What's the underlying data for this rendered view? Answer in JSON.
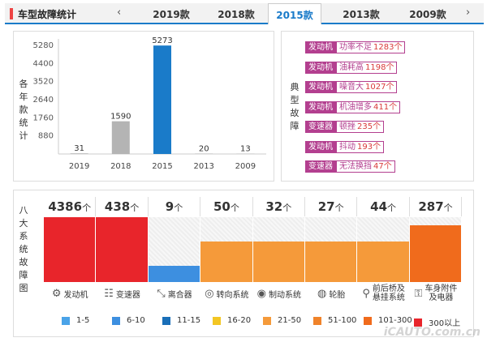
{
  "header": {
    "title": "车型故障统计",
    "prev_arrow": "‹",
    "next_arrow": "›",
    "tabs": [
      {
        "label": "2019款",
        "active": false
      },
      {
        "label": "2018款",
        "active": false
      },
      {
        "label": "2015款",
        "active": true
      },
      {
        "label": "2013款",
        "active": false
      },
      {
        "label": "2009款",
        "active": false
      }
    ]
  },
  "chart": {
    "ylabel": "各年款统计",
    "chart_data": {
      "type": "bar",
      "categories": [
        "2019",
        "2018",
        "2015",
        "2013",
        "2009"
      ],
      "values": [
        31,
        1590,
        5273,
        20,
        13
      ],
      "yticks": [
        880,
        1760,
        2640,
        3520,
        4400,
        5280
      ],
      "ylim": [
        0,
        5280
      ],
      "highlight": "2015",
      "colors": {
        "normal": "#b4b4b4",
        "highlight": "#1a7bc9"
      }
    }
  },
  "typical_faults": {
    "title": "典型故障",
    "items": [
      {
        "category": "发动机",
        "desc": "功率不足",
        "count": "1283个"
      },
      {
        "category": "发动机",
        "desc": "油耗高",
        "count": "1198个"
      },
      {
        "category": "发动机",
        "desc": "噪音大",
        "count": "1027个"
      },
      {
        "category": "发动机",
        "desc": "机油增多",
        "count": "411个"
      },
      {
        "category": "变速器",
        "desc": "顿挫",
        "count": "235个"
      },
      {
        "category": "发动机",
        "desc": "抖动",
        "count": "193个"
      },
      {
        "category": "变速器",
        "desc": "无法换挡",
        "count": "47个"
      }
    ]
  },
  "systems": {
    "title": "八大系统故障图",
    "unit": "个",
    "items": [
      {
        "count": "4386",
        "label": "发动机",
        "icon": "engine-icon",
        "glyph": "⚙",
        "level": 1.0,
        "color": "#e8252b"
      },
      {
        "count": "438",
        "label": "变速器",
        "icon": "gearbox-icon",
        "glyph": "☷",
        "level": 1.0,
        "color": "#e8252b"
      },
      {
        "count": "9",
        "label": "离合器",
        "icon": "clutch-icon",
        "glyph": "⤡",
        "level": 0.25,
        "color": "#3d8fe0"
      },
      {
        "count": "50",
        "label": "转向系统",
        "icon": "steering-icon",
        "glyph": "◎",
        "level": 0.62,
        "color": "#f59a3a"
      },
      {
        "count": "32",
        "label": "制动系统",
        "icon": "brake-icon",
        "glyph": "◉",
        "level": 0.62,
        "color": "#f59a3a"
      },
      {
        "count": "27",
        "label": "轮胎",
        "icon": "tire-icon",
        "glyph": "◍",
        "level": 0.62,
        "color": "#f59a3a"
      },
      {
        "count": "44",
        "label": "前后桥及悬挂系统",
        "label_lines": [
          "前后桥及",
          "悬挂系统"
        ],
        "icon": "suspension-icon",
        "glyph": "⚲",
        "level": 0.62,
        "color": "#f59a3a"
      },
      {
        "count": "287",
        "label": "车身附件及电器",
        "label_lines": [
          "车身附件",
          "及电器"
        ],
        "icon": "body-electric-icon",
        "glyph": "⚿",
        "level": 0.87,
        "color": "#f06b1c"
      }
    ]
  },
  "legend": [
    {
      "label": "1-5",
      "color": "#4aa3e8"
    },
    {
      "label": "6-10",
      "color": "#3d8fe0"
    },
    {
      "label": "11-15",
      "color": "#1a6fb8"
    },
    {
      "label": "16-20",
      "color": "#f3c623"
    },
    {
      "label": "21-50",
      "color": "#f59a3a"
    },
    {
      "label": "51-100",
      "color": "#f0832a"
    },
    {
      "label": "101-300",
      "color": "#f06b1c"
    },
    {
      "label": "300以上",
      "color": "#e8252b"
    }
  ],
  "watermark": "iCAUTO.com.cn"
}
